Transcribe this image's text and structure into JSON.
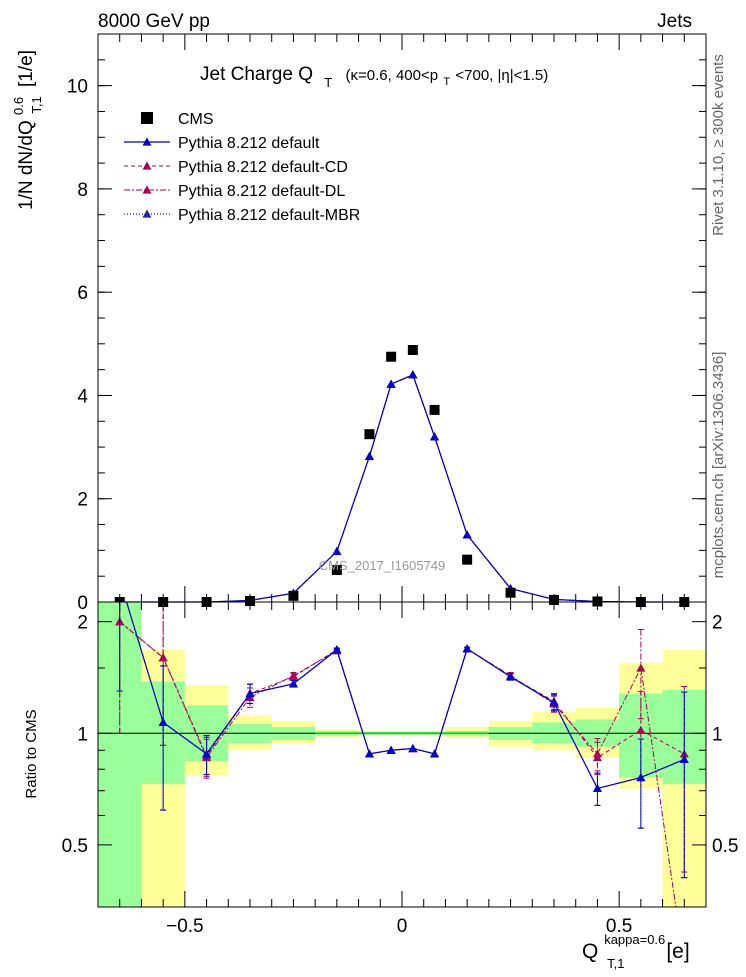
{
  "header": {
    "left": "8000 GeV pp",
    "right": "Jets"
  },
  "side_text": {
    "rivet": "Rivet 3.1.10, ≥ 300k events",
    "mcplots": "mcplots.cern.ch [arXiv:1306.3436]"
  },
  "watermark": "CMS_2017_I1605749",
  "colors": {
    "data": "#000000",
    "default": "#0000cc",
    "cd": "#aa0055",
    "dl": "#aa0055",
    "mbr": "#2020aa",
    "band_inner": "#99ff99",
    "band_outer": "#ffff99",
    "ref_line": "#00cc00"
  },
  "chart_data": [
    {
      "type": "scatter",
      "title_main": "Jet Charge Q",
      "title_sub": "T",
      "title_cond": "(κ=0.6, 400<p",
      "title_cond_sub": "T",
      "title_cond_end": "<700, |η|<1.5)",
      "ylabel": "1/N dN/dQ",
      "ylabel_sup": "0.6",
      "ylabel_sub": "T,1",
      "ylabel_unit": "[1/e]",
      "xlim": [
        -0.7,
        0.7
      ],
      "ylim": [
        0,
        11
      ],
      "yticks": [
        0,
        2,
        4,
        6,
        8,
        10
      ],
      "yticklabels": [
        "0",
        "2",
        "4",
        "6",
        "8",
        "10"
      ],
      "legend_placement": "top-left",
      "x": [
        -0.65,
        -0.55,
        -0.45,
        -0.35,
        -0.25,
        -0.15,
        -0.075,
        -0.025,
        0.025,
        0.075,
        0.15,
        0.25,
        0.35,
        0.45,
        0.55,
        0.65
      ],
      "series": [
        {
          "name": "CMS",
          "values": [
            0.0,
            0.0,
            0.0,
            0.02,
            0.12,
            0.62,
            3.25,
            4.75,
            4.88,
            3.72,
            0.82,
            0.18,
            0.04,
            0.01,
            0.0,
            0.0
          ]
        },
        {
          "name": "Pythia 8.212 default",
          "values": [
            0.0,
            0.0,
            0.0,
            0.03,
            0.17,
            0.98,
            2.82,
            4.22,
            4.4,
            3.2,
            1.3,
            0.26,
            0.05,
            0.01,
            0.0,
            0.0
          ]
        },
        {
          "name": "Pythia 8.212 default-CD",
          "values": [
            0.0,
            0.0,
            0.0,
            0.03,
            0.17,
            0.98,
            2.82,
            4.22,
            4.4,
            3.2,
            1.3,
            0.26,
            0.05,
            0.01,
            0.0,
            0.0
          ]
        },
        {
          "name": "Pythia 8.212 default-DL",
          "values": [
            0.0,
            0.0,
            0.0,
            0.03,
            0.17,
            0.98,
            2.82,
            4.22,
            4.4,
            3.2,
            1.3,
            0.26,
            0.05,
            0.01,
            0.0,
            0.0
          ]
        },
        {
          "name": "Pythia 8.212 default-MBR",
          "values": [
            0.0,
            0.0,
            0.0,
            0.03,
            0.17,
            0.98,
            2.82,
            4.22,
            4.4,
            3.2,
            1.3,
            0.26,
            0.05,
            0.01,
            0.0,
            0.0
          ]
        }
      ]
    },
    {
      "type": "line",
      "ylabel": "Ratio to CMS",
      "xlabel": "Q",
      "xlabel_sup": "kappa=0.6",
      "xlabel_sub": "T,1",
      "xlabel_unit": "[e]",
      "xlim": [
        -0.7,
        0.7
      ],
      "ylim": [
        0.34,
        2.26
      ],
      "xticks": [
        -0.5,
        0,
        0.5
      ],
      "xticklabels": [
        "−0.5",
        "0",
        "0.5"
      ],
      "yticks": [
        0.5,
        1,
        2
      ],
      "yticklabels": [
        "0.5",
        "1",
        "2"
      ],
      "reference": 1,
      "bands": [
        {
          "x0": -0.7,
          "x1": -0.6,
          "inner": [
            0.3,
            2.3
          ],
          "outer": [
            0.3,
            2.3
          ]
        },
        {
          "x0": -0.6,
          "x1": -0.5,
          "inner": [
            0.73,
            1.38
          ],
          "outer": [
            0.3,
            1.68
          ]
        },
        {
          "x0": -0.5,
          "x1": -0.4,
          "inner": [
            0.84,
            1.19
          ],
          "outer": [
            0.77,
            1.35
          ]
        },
        {
          "x0": -0.4,
          "x1": -0.3,
          "inner": [
            0.94,
            1.06
          ],
          "outer": [
            0.9,
            1.12
          ]
        },
        {
          "x0": -0.3,
          "x1": -0.2,
          "inner": [
            0.96,
            1.04
          ],
          "outer": [
            0.94,
            1.08
          ]
        },
        {
          "x0": -0.2,
          "x1": -0.1,
          "inner": [
            0.985,
            1.015
          ],
          "outer": [
            0.975,
            1.025
          ]
        },
        {
          "x0": -0.1,
          "x1": 0.0,
          "inner": [
            0.99,
            1.01
          ],
          "outer": [
            0.985,
            1.015
          ]
        },
        {
          "x0": 0.0,
          "x1": 0.1,
          "inner": [
            0.99,
            1.01
          ],
          "outer": [
            0.985,
            1.015
          ]
        },
        {
          "x0": 0.1,
          "x1": 0.2,
          "inner": [
            0.985,
            1.015
          ],
          "outer": [
            0.97,
            1.04
          ]
        },
        {
          "x0": 0.2,
          "x1": 0.3,
          "inner": [
            0.96,
            1.04
          ],
          "outer": [
            0.92,
            1.08
          ]
        },
        {
          "x0": 0.3,
          "x1": 0.4,
          "inner": [
            0.94,
            1.07
          ],
          "outer": [
            0.9,
            1.14
          ]
        },
        {
          "x0": 0.4,
          "x1": 0.5,
          "inner": [
            0.92,
            1.09
          ],
          "outer": [
            0.86,
            1.17
          ]
        },
        {
          "x0": 0.5,
          "x1": 0.6,
          "inner": [
            0.76,
            1.28
          ],
          "outer": [
            0.71,
            1.55
          ]
        },
        {
          "x0": 0.6,
          "x1": 0.7,
          "inner": [
            0.73,
            1.31
          ],
          "outer": [
            0.3,
            1.68
          ]
        }
      ],
      "x": [
        -0.65,
        -0.55,
        -0.45,
        -0.35,
        -0.25,
        -0.15,
        -0.075,
        -0.025,
        0.025,
        0.075,
        0.15,
        0.25,
        0.35,
        0.45,
        0.55,
        0.65
      ],
      "series": [
        {
          "name": "Pythia 8.212 default",
          "values": [
            2.6,
            1.07,
            0.88,
            1.28,
            1.36,
            1.68,
            0.88,
            0.9,
            0.91,
            0.88,
            1.69,
            1.42,
            1.21,
            0.71,
            0.76,
            0.85
          ]
        },
        {
          "name": "Pythia 8.212 default-CD",
          "values": [
            2.0,
            1.6,
            0.87,
            1.28,
            1.42,
            1.68,
            0.88,
            0.9,
            0.91,
            0.88,
            1.69,
            1.42,
            1.22,
            0.86,
            1.02,
            0.88
          ]
        },
        {
          "name": "Pythia 8.212 default-DL",
          "values": [
            2.0,
            1.6,
            0.86,
            1.25,
            1.43,
            1.67,
            0.88,
            0.9,
            0.91,
            0.88,
            1.69,
            1.43,
            1.2,
            0.88,
            1.5,
            0.2
          ]
        },
        {
          "name": "Pythia 8.212 default-MBR",
          "values": [
            2.6,
            1.07,
            0.88,
            1.28,
            1.36,
            1.68,
            0.88,
            0.9,
            0.91,
            0.88,
            1.69,
            1.42,
            1.21,
            0.71,
            0.76,
            0.85
          ]
        }
      ],
      "errors": [
        0.5,
        0.42,
        0.12,
        0.06,
        0.02,
        0.01,
        0.005,
        0.005,
        0.005,
        0.005,
        0.01,
        0.02,
        0.05,
        0.1,
        0.27,
        0.52
      ]
    }
  ]
}
